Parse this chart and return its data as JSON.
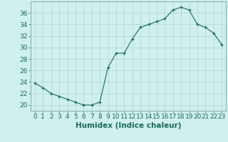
{
  "x": [
    0,
    1,
    2,
    3,
    4,
    5,
    6,
    7,
    8,
    9,
    10,
    11,
    12,
    13,
    14,
    15,
    16,
    17,
    18,
    19,
    20,
    21,
    22,
    23
  ],
  "y": [
    23.8,
    23.0,
    22.0,
    21.5,
    21.0,
    20.5,
    20.0,
    20.0,
    20.5,
    26.5,
    29.0,
    29.0,
    31.5,
    33.5,
    34.0,
    34.5,
    35.0,
    36.5,
    37.0,
    36.5,
    34.0,
    33.5,
    32.5,
    30.5
  ],
  "line_color": "#1a6b5a",
  "marker": "+",
  "bg_color": "#cff0ec",
  "grid_color": "#b8d8d4",
  "xlabel": "Humidex (Indice chaleur)",
  "ylim": [
    19,
    38
  ],
  "xlim": [
    -0.5,
    23.5
  ],
  "yticks": [
    20,
    22,
    24,
    26,
    28,
    30,
    32,
    34,
    36
  ],
  "xticks": [
    0,
    1,
    2,
    3,
    4,
    5,
    6,
    7,
    8,
    9,
    10,
    11,
    12,
    13,
    14,
    15,
    16,
    17,
    18,
    19,
    20,
    21,
    22,
    23
  ],
  "tick_labelsize": 6.5,
  "xlabel_fontsize": 7.5
}
